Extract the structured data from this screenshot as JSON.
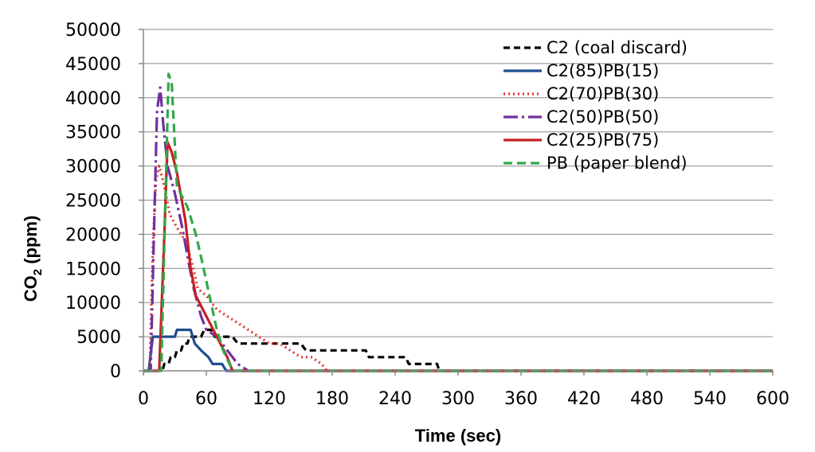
{
  "chart_data": {
    "type": "line",
    "title": "",
    "xlabel": "Time (sec)",
    "ylabel_main": "CO",
    "ylabel_sub": "2",
    "ylabel_unit": " (ppm)",
    "xlim": [
      0,
      600
    ],
    "ylim": [
      0,
      50000
    ],
    "xticks": [
      0,
      60,
      120,
      180,
      240,
      300,
      360,
      420,
      480,
      540,
      600
    ],
    "yticks": [
      0,
      5000,
      10000,
      15000,
      20000,
      25000,
      30000,
      35000,
      40000,
      45000,
      50000
    ],
    "grid": "horizontal",
    "legend_position": "top-right",
    "series": [
      {
        "name": "C2 (coal discard)",
        "color": "#000000",
        "dash": "8,5",
        "points": [
          [
            0,
            0
          ],
          [
            18,
            0
          ],
          [
            20,
            1000
          ],
          [
            24,
            1000
          ],
          [
            26,
            2000
          ],
          [
            30,
            2000
          ],
          [
            32,
            3000
          ],
          [
            36,
            3000
          ],
          [
            38,
            4000
          ],
          [
            42,
            4000
          ],
          [
            44,
            5000
          ],
          [
            55,
            5000
          ],
          [
            58,
            6000
          ],
          [
            65,
            6000
          ],
          [
            68,
            5000
          ],
          [
            85,
            5000
          ],
          [
            90,
            4000
          ],
          [
            150,
            4000
          ],
          [
            155,
            3000
          ],
          [
            212,
            3000
          ],
          [
            215,
            2000
          ],
          [
            250,
            2000
          ],
          [
            253,
            1000
          ],
          [
            280,
            1000
          ],
          [
            282,
            0
          ],
          [
            600,
            0
          ]
        ]
      },
      {
        "name": "C2(85)PB(15)",
        "color": "#1f4e8f",
        "dash": "",
        "points": [
          [
            0,
            0
          ],
          [
            5,
            0
          ],
          [
            9,
            5000
          ],
          [
            30,
            5000
          ],
          [
            32,
            6000
          ],
          [
            45,
            6000
          ],
          [
            49,
            4000
          ],
          [
            55,
            3000
          ],
          [
            62,
            2000
          ],
          [
            66,
            1000
          ],
          [
            75,
            1000
          ],
          [
            79,
            0
          ],
          [
            600,
            0
          ]
        ]
      },
      {
        "name": "C2(70)PB(30)",
        "color": "#e8312e",
        "dash": "2,4",
        "points": [
          [
            0,
            0
          ],
          [
            6,
            0
          ],
          [
            9,
            18000
          ],
          [
            12,
            28000
          ],
          [
            15,
            30000
          ],
          [
            20,
            27000
          ],
          [
            25,
            23000
          ],
          [
            32,
            21000
          ],
          [
            40,
            19000
          ],
          [
            46,
            16000
          ],
          [
            52,
            12000
          ],
          [
            60,
            11000
          ],
          [
            70,
            9000
          ],
          [
            80,
            8000
          ],
          [
            90,
            7000
          ],
          [
            100,
            6000
          ],
          [
            110,
            5000
          ],
          [
            120,
            4000
          ],
          [
            130,
            4000
          ],
          [
            140,
            3000
          ],
          [
            150,
            2000
          ],
          [
            160,
            2000
          ],
          [
            170,
            1000
          ],
          [
            175,
            0
          ],
          [
            600,
            0
          ]
        ]
      },
      {
        "name": "C2(50)PB(50)",
        "color": "#7030a0",
        "dash": "18,5,3,5",
        "points": [
          [
            0,
            0
          ],
          [
            7,
            0
          ],
          [
            10,
            20000
          ],
          [
            13,
            38000
          ],
          [
            16,
            41500
          ],
          [
            19,
            36000
          ],
          [
            23,
            30000
          ],
          [
            30,
            26000
          ],
          [
            37,
            21000
          ],
          [
            43,
            16000
          ],
          [
            48,
            12000
          ],
          [
            55,
            8000
          ],
          [
            60,
            6000
          ],
          [
            70,
            5000
          ],
          [
            80,
            3000
          ],
          [
            90,
            1000
          ],
          [
            100,
            0
          ],
          [
            600,
            0
          ]
        ]
      },
      {
        "name": "C2(25)PB(75)",
        "color": "#c42023",
        "dash": "",
        "points": [
          [
            0,
            0
          ],
          [
            15,
            0
          ],
          [
            20,
            20000
          ],
          [
            23,
            33500
          ],
          [
            27,
            32000
          ],
          [
            32,
            29000
          ],
          [
            40,
            22000
          ],
          [
            45,
            15000
          ],
          [
            50,
            11000
          ],
          [
            60,
            8000
          ],
          [
            70,
            5000
          ],
          [
            80,
            2000
          ],
          [
            85,
            0
          ],
          [
            600,
            0
          ]
        ]
      },
      {
        "name": "PB (paper blend)",
        "color": "#2ea84a",
        "dash": "11,6",
        "points": [
          [
            0,
            0
          ],
          [
            17,
            0
          ],
          [
            21,
            25000
          ],
          [
            24,
            43500
          ],
          [
            27,
            42000
          ],
          [
            32,
            27000
          ],
          [
            42,
            24000
          ],
          [
            50,
            20000
          ],
          [
            56,
            16000
          ],
          [
            63,
            11000
          ],
          [
            70,
            6000
          ],
          [
            76,
            3000
          ],
          [
            82,
            1000
          ],
          [
            86,
            0
          ],
          [
            600,
            0
          ]
        ]
      }
    ]
  }
}
